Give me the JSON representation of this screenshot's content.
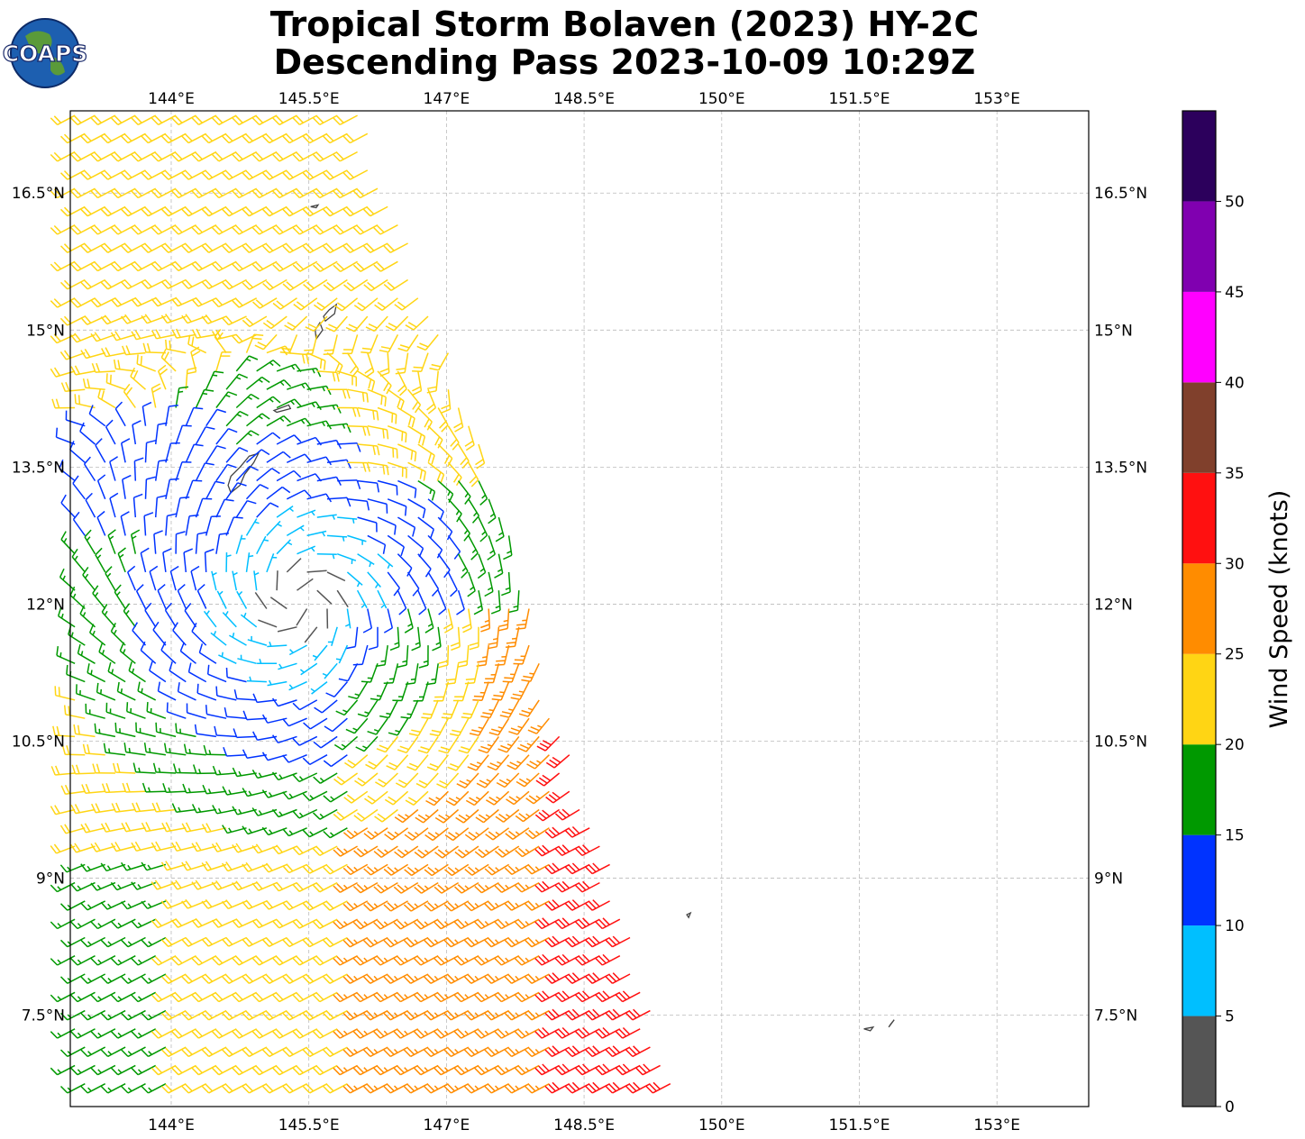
{
  "logo": {
    "text": "COAPS"
  },
  "title": {
    "line1": "Tropical Storm Bolaven (2023) HY-2C",
    "line2": "Descending Pass 2023-10-09 10:29Z"
  },
  "map": {
    "lon_range": [
      142.9,
      154.0
    ],
    "lat_range": [
      6.5,
      17.4
    ],
    "lon_ticks": [
      {
        "value": 144.0,
        "label": "144°E"
      },
      {
        "value": 145.5,
        "label": "145.5°E"
      },
      {
        "value": 147.0,
        "label": "147°E"
      },
      {
        "value": 148.5,
        "label": "148.5°E"
      },
      {
        "value": 150.0,
        "label": "150°E"
      },
      {
        "value": 151.5,
        "label": "151.5°E"
      },
      {
        "value": 153.0,
        "label": "153°E"
      }
    ],
    "lat_ticks": [
      {
        "value": 16.5,
        "label": "16.5°N"
      },
      {
        "value": 15.0,
        "label": "15°N"
      },
      {
        "value": 13.5,
        "label": "13.5°N"
      },
      {
        "value": 12.0,
        "label": "12°N"
      },
      {
        "value": 10.5,
        "label": "10.5°N"
      },
      {
        "value": 9.0,
        "label": "9°N"
      },
      {
        "value": 7.5,
        "label": "7.5°N"
      }
    ],
    "grid": true,
    "storm_center": {
      "lon": 145.4,
      "lat": 12.05
    },
    "swath_east_edge": [
      {
        "lat": 17.4,
        "lon": 146.1
      },
      {
        "lat": 15.0,
        "lon": 147.0
      },
      {
        "lat": 13.0,
        "lon": 147.7
      },
      {
        "lat": 11.0,
        "lon": 148.2
      },
      {
        "lat": 9.0,
        "lon": 148.9
      },
      {
        "lat": 6.5,
        "lon": 149.6
      }
    ],
    "islands": [
      {
        "name": "Guam",
        "points": [
          [
            144.65,
            13.22
          ],
          [
            144.75,
            13.3
          ],
          [
            144.8,
            13.42
          ],
          [
            144.9,
            13.55
          ],
          [
            144.95,
            13.65
          ],
          [
            144.85,
            13.62
          ],
          [
            144.75,
            13.5
          ],
          [
            144.65,
            13.4
          ],
          [
            144.62,
            13.3
          ]
        ]
      },
      {
        "name": "Rota",
        "points": [
          [
            145.12,
            14.12
          ],
          [
            145.28,
            14.18
          ],
          [
            145.3,
            14.14
          ],
          [
            145.15,
            14.1
          ]
        ]
      },
      {
        "name": "Tinian",
        "points": [
          [
            145.58,
            14.9
          ],
          [
            145.65,
            15.0
          ],
          [
            145.62,
            15.08
          ],
          [
            145.57,
            15.0
          ]
        ]
      },
      {
        "name": "Saipan",
        "points": [
          [
            145.68,
            15.1
          ],
          [
            145.78,
            15.18
          ],
          [
            145.8,
            15.28
          ],
          [
            145.72,
            15.22
          ],
          [
            145.66,
            15.15
          ]
        ]
      },
      {
        "name": "Aguijan",
        "points": [
          [
            145.52,
            16.35
          ],
          [
            145.6,
            16.37
          ],
          [
            145.58,
            16.34
          ]
        ]
      },
      {
        "name": "Atoll-1",
        "points": [
          [
            149.62,
            8.6
          ],
          [
            149.66,
            8.62
          ],
          [
            149.64,
            8.57
          ]
        ]
      },
      {
        "name": "Atoll-2",
        "points": [
          [
            151.55,
            7.35
          ],
          [
            151.65,
            7.37
          ],
          [
            151.62,
            7.33
          ]
        ]
      },
      {
        "name": "Atoll-3",
        "points": [
          [
            151.82,
            7.37
          ],
          [
            151.88,
            7.45
          ],
          [
            151.84,
            7.4
          ]
        ]
      }
    ]
  },
  "colorbar": {
    "label": "Wind Speed (knots)",
    "ticks": [
      "0",
      "5",
      "10",
      "15",
      "20",
      "25",
      "30",
      "35",
      "40",
      "45",
      "50"
    ],
    "bins": [
      {
        "min": 0,
        "max": 5,
        "color": "#555555"
      },
      {
        "min": 5,
        "max": 10,
        "color": "#00bfff"
      },
      {
        "min": 10,
        "max": 15,
        "color": "#0033ff"
      },
      {
        "min": 15,
        "max": 20,
        "color": "#009900"
      },
      {
        "min": 20,
        "max": 25,
        "color": "#ffd514"
      },
      {
        "min": 25,
        "max": 30,
        "color": "#ff8c00"
      },
      {
        "min": 30,
        "max": 35,
        "color": "#ff1010"
      },
      {
        "min": 35,
        "max": 40,
        "color": "#80402c"
      },
      {
        "min": 40,
        "max": 45,
        "color": "#ff00ff"
      },
      {
        "min": 45,
        "max": 50,
        "color": "#8000b0"
      },
      {
        "min": 50,
        "max": 55,
        "color": "#2c005c"
      }
    ]
  }
}
